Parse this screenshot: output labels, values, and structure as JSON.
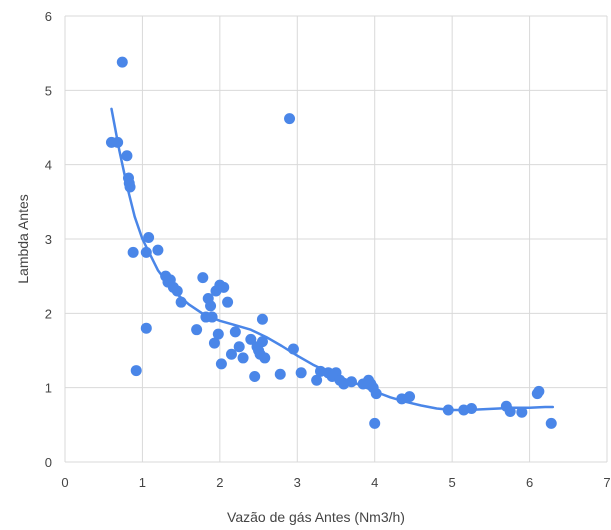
{
  "chart_data": {
    "type": "scatter",
    "title": "",
    "xlabel": "Vazão de gás Antes (Nm3/h)",
    "ylabel": "Lambda Antes",
    "xlim": [
      0,
      7
    ],
    "ylim": [
      0,
      6
    ],
    "x_ticks": [
      "0",
      "1",
      "2",
      "3",
      "4",
      "5",
      "6",
      "7"
    ],
    "y_ticks": [
      "0",
      "1",
      "2",
      "3",
      "4",
      "5",
      "6"
    ],
    "grid": true,
    "legend": "none",
    "point_color": "#4a86e8",
    "series": [
      {
        "points": [
          [
            0.6,
            4.3
          ],
          [
            0.68,
            4.3
          ],
          [
            0.74,
            5.38
          ],
          [
            0.8,
            4.12
          ],
          [
            0.82,
            3.82
          ],
          [
            0.83,
            3.75
          ],
          [
            0.84,
            3.7
          ],
          [
            0.88,
            2.82
          ],
          [
            0.92,
            1.23
          ],
          [
            1.05,
            1.8
          ],
          [
            1.05,
            2.82
          ],
          [
            1.08,
            3.02
          ],
          [
            1.2,
            2.85
          ],
          [
            1.3,
            2.5
          ],
          [
            1.33,
            2.42
          ],
          [
            1.36,
            2.45
          ],
          [
            1.4,
            2.35
          ],
          [
            1.45,
            2.3
          ],
          [
            1.5,
            2.15
          ],
          [
            1.7,
            1.78
          ],
          [
            1.78,
            2.48
          ],
          [
            1.82,
            1.95
          ],
          [
            1.85,
            2.2
          ],
          [
            1.88,
            2.1
          ],
          [
            1.9,
            1.95
          ],
          [
            1.93,
            1.6
          ],
          [
            1.95,
            2.3
          ],
          [
            1.98,
            1.72
          ],
          [
            2.0,
            2.38
          ],
          [
            2.02,
            1.32
          ],
          [
            2.05,
            2.35
          ],
          [
            2.1,
            2.15
          ],
          [
            2.15,
            1.45
          ],
          [
            2.2,
            1.75
          ],
          [
            2.25,
            1.55
          ],
          [
            2.3,
            1.4
          ],
          [
            2.4,
            1.65
          ],
          [
            2.45,
            1.15
          ],
          [
            2.48,
            1.55
          ],
          [
            2.5,
            1.5
          ],
          [
            2.52,
            1.45
          ],
          [
            2.55,
            1.62
          ],
          [
            2.55,
            1.92
          ],
          [
            2.58,
            1.4
          ],
          [
            2.78,
            1.18
          ],
          [
            2.9,
            4.62
          ],
          [
            2.95,
            1.52
          ],
          [
            3.05,
            1.2
          ],
          [
            3.25,
            1.1
          ],
          [
            3.3,
            1.22
          ],
          [
            3.4,
            1.2
          ],
          [
            3.45,
            1.15
          ],
          [
            3.5,
            1.2
          ],
          [
            3.55,
            1.1
          ],
          [
            3.6,
            1.05
          ],
          [
            3.7,
            1.08
          ],
          [
            3.85,
            1.05
          ],
          [
            3.92,
            1.1
          ],
          [
            3.95,
            1.05
          ],
          [
            3.98,
            1.0
          ],
          [
            4.0,
            0.52
          ],
          [
            4.02,
            0.92
          ],
          [
            4.35,
            0.85
          ],
          [
            4.45,
            0.88
          ],
          [
            4.95,
            0.7
          ],
          [
            5.15,
            0.7
          ],
          [
            5.25,
            0.72
          ],
          [
            5.7,
            0.75
          ],
          [
            5.75,
            0.68
          ],
          [
            5.9,
            0.67
          ],
          [
            6.1,
            0.92
          ],
          [
            6.12,
            0.95
          ],
          [
            6.28,
            0.52
          ]
        ]
      }
    ],
    "trendline": {
      "color": "#4a86e8",
      "points": [
        [
          0.6,
          4.75
        ],
        [
          0.7,
          4.2
        ],
        [
          0.8,
          3.72
        ],
        [
          0.9,
          3.3
        ],
        [
          1.0,
          3.0
        ],
        [
          1.2,
          2.58
        ],
        [
          1.4,
          2.3
        ],
        [
          1.6,
          2.12
        ],
        [
          1.8,
          1.98
        ],
        [
          2.0,
          1.9
        ],
        [
          2.2,
          1.84
        ],
        [
          2.4,
          1.78
        ],
        [
          2.6,
          1.68
        ],
        [
          2.8,
          1.56
        ],
        [
          3.0,
          1.43
        ],
        [
          3.2,
          1.31
        ],
        [
          3.4,
          1.21
        ],
        [
          3.6,
          1.12
        ],
        [
          3.8,
          1.04
        ],
        [
          4.0,
          0.95
        ],
        [
          4.2,
          0.87
        ],
        [
          4.4,
          0.81
        ],
        [
          4.6,
          0.76
        ],
        [
          4.8,
          0.72
        ],
        [
          5.0,
          0.7
        ],
        [
          5.2,
          0.7
        ],
        [
          5.4,
          0.71
        ],
        [
          5.6,
          0.72
        ],
        [
          5.8,
          0.73
        ],
        [
          6.0,
          0.73
        ],
        [
          6.2,
          0.74
        ],
        [
          6.3,
          0.74
        ]
      ]
    }
  }
}
